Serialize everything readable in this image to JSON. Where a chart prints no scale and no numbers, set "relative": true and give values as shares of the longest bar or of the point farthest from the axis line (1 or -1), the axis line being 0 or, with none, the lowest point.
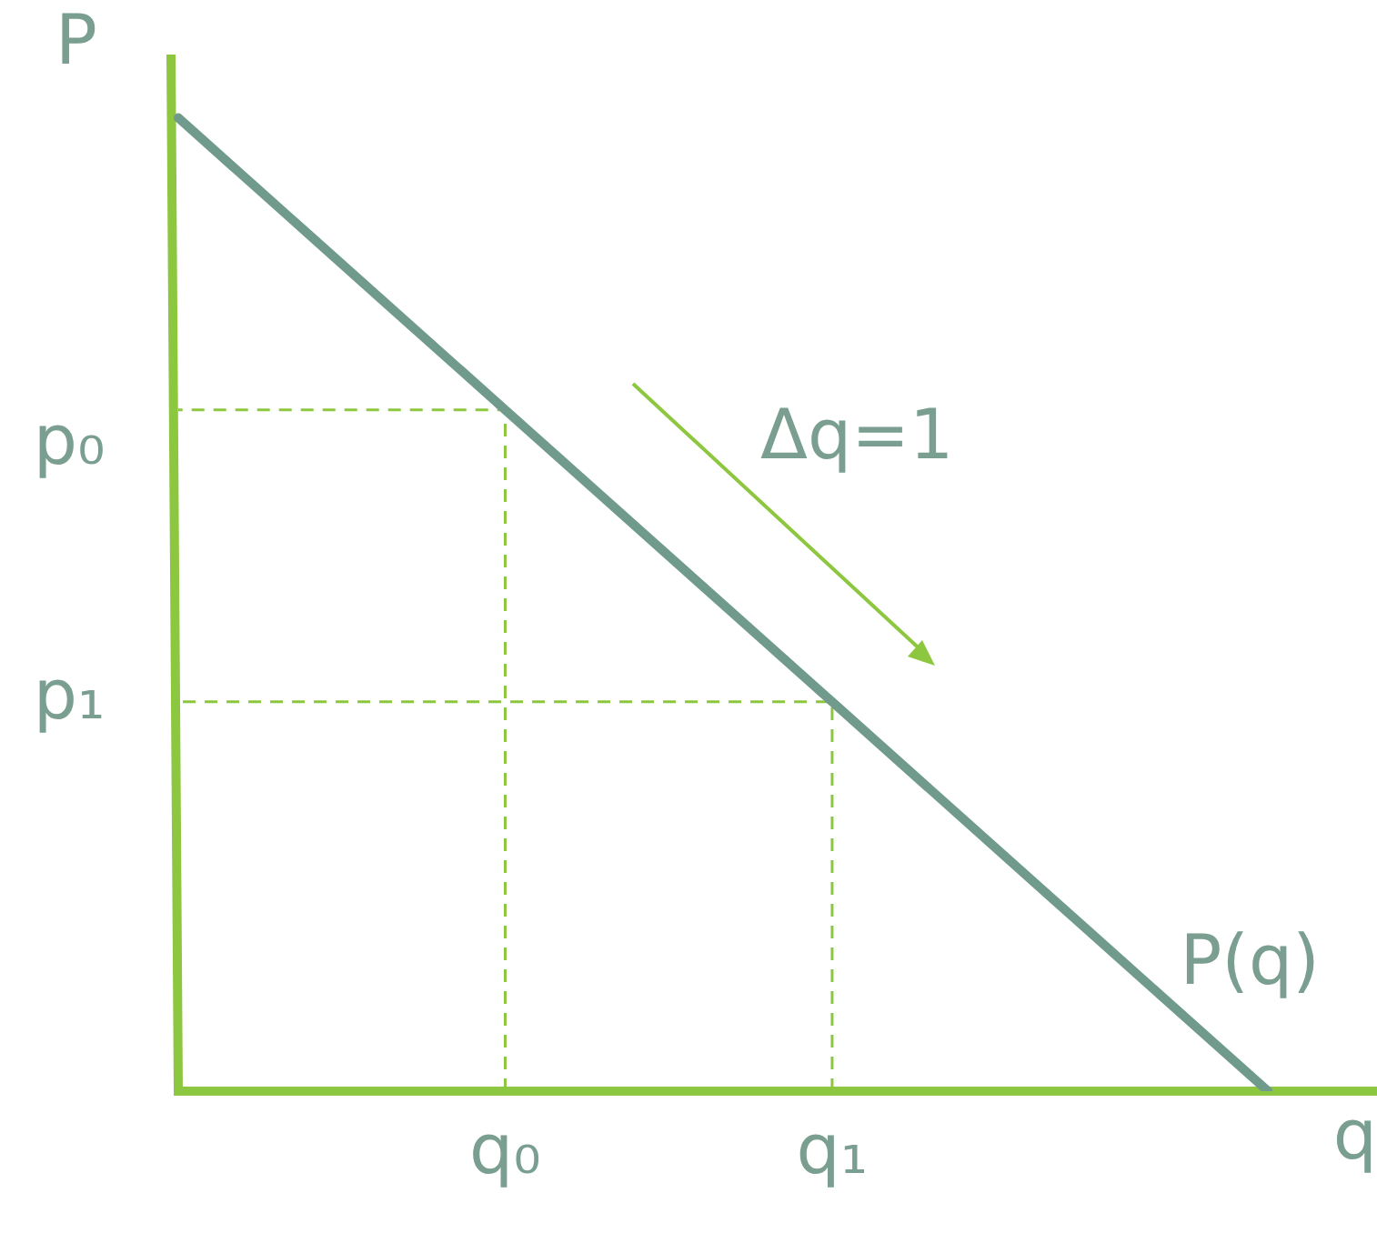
{
  "chart_data": {
    "type": "line",
    "relative": true,
    "ylabel": "P",
    "xlabel": "q",
    "categories": [
      null,
      null,
      null,
      "q₀",
      null,
      null,
      "q₁",
      null,
      null,
      null,
      null,
      null
    ],
    "series": [
      {
        "name": "P(q)",
        "color": "#6f9a8c",
        "values": [
          1,
          0.9,
          0.8,
          0.7,
          0.6,
          0.5,
          0.4,
          0.3,
          0.2,
          0.1,
          0,
          null
        ]
      }
    ],
    "annotations": [
      "p₀",
      "p₁",
      "Δq=1"
    ],
    "marker": "none",
    "line_style": "solid",
    "legend": false,
    "grid": false
  }
}
